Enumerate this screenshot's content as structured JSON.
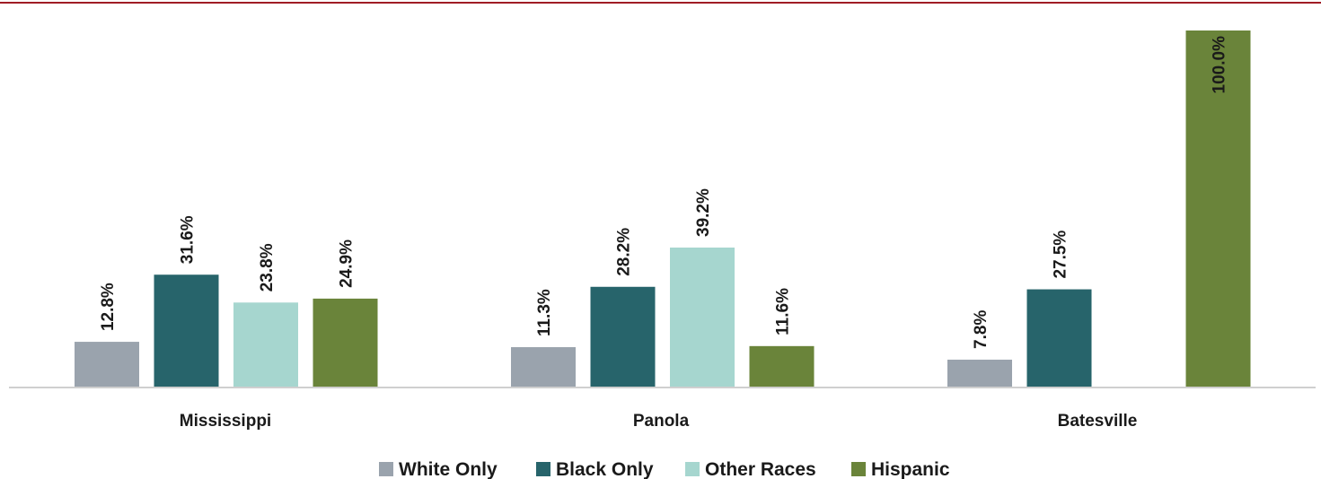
{
  "chart_data": {
    "type": "bar",
    "categories": [
      "Mississippi",
      "Panola",
      "Batesville"
    ],
    "series": [
      {
        "name": "White Only",
        "color": "#9aa3ad",
        "values": [
          12.8,
          11.3,
          7.8
        ]
      },
      {
        "name": "Black Only",
        "color": "#27646b",
        "values": [
          31.6,
          28.2,
          27.5
        ]
      },
      {
        "name": "Other Races",
        "color": "#a6d6cf",
        "values": [
          23.8,
          39.2,
          null
        ]
      },
      {
        "name": "Hispanic",
        "color": "#6a843a",
        "values": [
          24.9,
          11.6,
          100.0
        ]
      }
    ],
    "value_labels": [
      [
        "12.8%",
        "31.6%",
        "23.8%",
        "24.9%"
      ],
      [
        "11.3%",
        "28.2%",
        "39.2%",
        "11.6%"
      ],
      [
        "7.8%",
        "27.5%",
        "",
        "100.0%"
      ]
    ],
    "ylim": [
      0,
      100
    ],
    "grid": false,
    "legend_position": "bottom-center",
    "top_rule_color": "#a01c25"
  }
}
